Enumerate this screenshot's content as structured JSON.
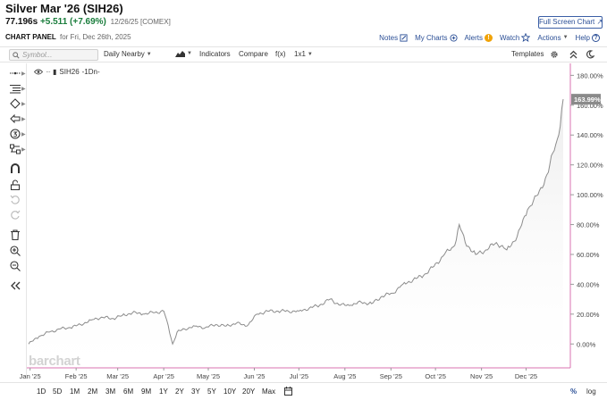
{
  "header": {
    "title": "Silver Mar '26 (SIH26)",
    "last_price": "77.196s",
    "change": "+5.511 (+7.69%)",
    "meta": "12/26/25 [COMEX]",
    "fullscreen_label": "Full Screen Chart",
    "panel_label": "CHART PANEL",
    "panel_date": "for Fri, Dec 26th, 2025"
  },
  "actions": {
    "notes": "Notes",
    "my_charts": "My Charts",
    "alerts": "Alerts",
    "alert_count": "!",
    "watch": "Watch",
    "actions_menu": "Actions",
    "help": "Help"
  },
  "toolbar": {
    "symbol_placeholder": "Symbol...",
    "aggregation": "Daily Nearby",
    "indicators": "Indicators",
    "compare": "Compare",
    "fx": "f(x)",
    "layout": "1x1",
    "templates": "Templates"
  },
  "legend": {
    "symbol": "SIH26",
    "interval": "-1Dn-"
  },
  "watermark": "barchart",
  "bottom": {
    "ranges": [
      "1D",
      "5D",
      "1M",
      "2M",
      "3M",
      "6M",
      "9M",
      "1Y",
      "2Y",
      "3Y",
      "5Y",
      "10Y",
      "20Y",
      "Max"
    ],
    "percent_label": "%",
    "log_label": "log"
  },
  "colors": {
    "line": "#8c8c8c",
    "area_top": "#ececec",
    "axis_border": "#d873b1",
    "last_tag": "#8a8a8a",
    "link": "#2b4f96",
    "change_up": "#1a7d3c"
  },
  "chart_data": {
    "type": "area",
    "series_label": "SIH26 -1Dn-",
    "y_unit": "percent change",
    "ylim": [
      -16,
      188
    ],
    "yticks": [
      0,
      20,
      40,
      60,
      80,
      100,
      120,
      140,
      160,
      180
    ],
    "ytick_labels": [
      "0.00%",
      "20.00%",
      "40.00%",
      "60.00%",
      "80.00%",
      "100.00%",
      "120.00%",
      "140.00%",
      "160.00%",
      "180.00%"
    ],
    "last_value_label": "163.99%",
    "xtick_labels": [
      "Jan '25",
      "Feb '25",
      "Mar '25",
      "Apr '25",
      "May '25",
      "Jun '25",
      "Jul '25",
      "Aug '25",
      "Sep '25",
      "Oct '25",
      "Nov '25",
      "Dec '25"
    ],
    "x": [
      "2024-12-31",
      "2025-01-07",
      "2025-01-14",
      "2025-01-21",
      "2025-01-28",
      "2025-02-04",
      "2025-02-11",
      "2025-02-18",
      "2025-02-25",
      "2025-03-04",
      "2025-03-11",
      "2025-03-18",
      "2025-03-25",
      "2025-04-01",
      "2025-04-03",
      "2025-04-07",
      "2025-04-10",
      "2025-04-15",
      "2025-04-22",
      "2025-04-29",
      "2025-05-06",
      "2025-05-13",
      "2025-05-20",
      "2025-05-27",
      "2025-06-03",
      "2025-06-10",
      "2025-06-17",
      "2025-06-24",
      "2025-07-01",
      "2025-07-08",
      "2025-07-15",
      "2025-07-22",
      "2025-07-29",
      "2025-08-05",
      "2025-08-12",
      "2025-08-19",
      "2025-08-26",
      "2025-09-02",
      "2025-09-09",
      "2025-09-16",
      "2025-09-23",
      "2025-09-30",
      "2025-10-07",
      "2025-10-14",
      "2025-10-17",
      "2025-10-21",
      "2025-10-28",
      "2025-11-04",
      "2025-11-11",
      "2025-11-18",
      "2025-11-25",
      "2025-12-02",
      "2025-12-09",
      "2025-12-16",
      "2025-12-19",
      "2025-12-23",
      "2025-12-26"
    ],
    "y": [
      0,
      5,
      8,
      10,
      11,
      13,
      16,
      18,
      17,
      19,
      21,
      20,
      21,
      22,
      16,
      0,
      8,
      10,
      12,
      11,
      13,
      12,
      14,
      12,
      20,
      22,
      22,
      22,
      22,
      24,
      26,
      30,
      26,
      26,
      28,
      27,
      32,
      34,
      40,
      43,
      46,
      52,
      60,
      66,
      80,
      68,
      60,
      63,
      68,
      63,
      72,
      90,
      100,
      115,
      128,
      140,
      163.99
    ]
  }
}
